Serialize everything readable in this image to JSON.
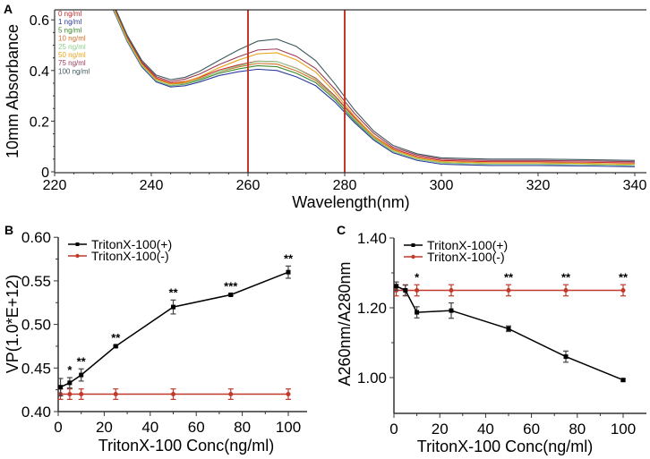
{
  "colors": {
    "plus": "#000000",
    "minus": "#c0392b",
    "marker_line": "#c0392b",
    "axis": "#333333"
  },
  "chart_data": [
    {
      "panel": "A",
      "type": "line",
      "xlabel": "Wavelength(nm)",
      "ylabel": "10mm Absorbance",
      "xlim": [
        220,
        342
      ],
      "ylim": [
        0,
        0.6
      ],
      "xticks": [
        220,
        240,
        260,
        280,
        300,
        320,
        340
      ],
      "yticks": [
        0,
        0.2,
        0.4,
        0.6
      ],
      "ytick_labels": [
        "0",
        "0.2",
        "0.4",
        "0.6"
      ],
      "reference_lines_x": [
        260,
        280
      ],
      "legend_placement": "top-left",
      "x": [
        232,
        235,
        238,
        241,
        244,
        247,
        250,
        254,
        258,
        262,
        266,
        270,
        274,
        278,
        282,
        286,
        290,
        295,
        300,
        310,
        320,
        330,
        340
      ],
      "series": [
        {
          "name": "0 ng/ml",
          "color": "#c8282d",
          "values": [
            0.66,
            0.53,
            0.43,
            0.37,
            0.351,
            0.357,
            0.373,
            0.402,
            0.422,
            0.437,
            0.435,
            0.409,
            0.37,
            0.299,
            0.215,
            0.142,
            0.091,
            0.06,
            0.045,
            0.04,
            0.04,
            0.038,
            0.035
          ]
        },
        {
          "name": "1 ng/ml",
          "color": "#2b3a9c",
          "values": [
            0.645,
            0.515,
            0.415,
            0.355,
            0.335,
            0.34,
            0.355,
            0.38,
            0.395,
            0.405,
            0.4,
            0.375,
            0.34,
            0.275,
            0.195,
            0.125,
            0.075,
            0.045,
            0.03,
            0.025,
            0.025,
            0.023,
            0.02
          ]
        },
        {
          "name": "5 ng/ml",
          "color": "#3c8a2c",
          "values": [
            0.65,
            0.52,
            0.42,
            0.36,
            0.34,
            0.346,
            0.362,
            0.389,
            0.406,
            0.419,
            0.415,
            0.389,
            0.352,
            0.285,
            0.202,
            0.131,
            0.08,
            0.05,
            0.035,
            0.03,
            0.03,
            0.028,
            0.025
          ]
        },
        {
          "name": "10 ng/ml",
          "color": "#d2702a",
          "values": [
            0.655,
            0.525,
            0.425,
            0.365,
            0.346,
            0.351,
            0.368,
            0.395,
            0.414,
            0.428,
            0.425,
            0.399,
            0.361,
            0.292,
            0.209,
            0.137,
            0.086,
            0.055,
            0.04,
            0.035,
            0.035,
            0.033,
            0.03
          ]
        },
        {
          "name": "25 ng/ml",
          "color": "#8fcf8f",
          "values": [
            0.65,
            0.52,
            0.42,
            0.36,
            0.341,
            0.348,
            0.365,
            0.396,
            0.418,
            0.436,
            0.435,
            0.408,
            0.367,
            0.294,
            0.207,
            0.133,
            0.081,
            0.05,
            0.035,
            0.03,
            0.03,
            0.028,
            0.025
          ]
        },
        {
          "name": "50 ng/ml",
          "color": "#e8a317",
          "values": [
            0.655,
            0.525,
            0.425,
            0.366,
            0.347,
            0.355,
            0.375,
            0.411,
            0.441,
            0.466,
            0.47,
            0.442,
            0.394,
            0.313,
            0.22,
            0.141,
            0.087,
            0.055,
            0.04,
            0.035,
            0.035,
            0.033,
            0.03
          ]
        },
        {
          "name": "75 ng/ml",
          "color": "#9a3a55",
          "values": [
            0.665,
            0.535,
            0.435,
            0.376,
            0.357,
            0.366,
            0.386,
            0.423,
            0.454,
            0.481,
            0.485,
            0.456,
            0.408,
            0.326,
            0.231,
            0.152,
            0.097,
            0.066,
            0.05,
            0.045,
            0.045,
            0.043,
            0.04
          ]
        },
        {
          "name": "100 ng/ml",
          "color": "#3f5a5e",
          "values": [
            0.67,
            0.54,
            0.441,
            0.382,
            0.364,
            0.373,
            0.397,
            0.44,
            0.481,
            0.516,
            0.524,
            0.495,
            0.439,
            0.347,
            0.245,
            0.161,
            0.104,
            0.071,
            0.055,
            0.05,
            0.05,
            0.048,
            0.045
          ]
        }
      ]
    },
    {
      "panel": "B",
      "type": "line",
      "xlabel": "TritonX-100 Conc(ng/ml)",
      "ylabel": "VP(1.0*E+12)",
      "xlim": [
        0,
        108
      ],
      "ylim": [
        0.4,
        0.6
      ],
      "xticks": [
        0,
        20,
        40,
        60,
        80,
        100
      ],
      "yticks": [
        0.4,
        0.45,
        0.5,
        0.55,
        0.6
      ],
      "ytick_labels": [
        "0.40",
        "0.45",
        "0.50",
        "0.55",
        "0.60"
      ],
      "legend_placement": "top-left",
      "x": [
        1,
        5,
        10,
        25,
        50,
        75,
        100
      ],
      "series": [
        {
          "name": "TritonX-100(+)",
          "color": "#000000",
          "values": [
            0.428,
            0.433,
            0.442,
            0.475,
            0.52,
            0.534,
            0.56
          ],
          "errors": [
            0.01,
            0.006,
            0.007,
            0.001,
            0.008,
            0.001,
            0.007
          ],
          "significance": [
            "",
            "*",
            "**",
            "**",
            "**",
            "***",
            "**"
          ]
        },
        {
          "name": "TritonX-100(-)",
          "color": "#c0392b",
          "values": [
            0.42,
            0.42,
            0.42,
            0.42,
            0.42,
            0.42,
            0.42
          ],
          "errors": [
            0.006,
            0.006,
            0.006,
            0.006,
            0.006,
            0.006,
            0.006
          ]
        }
      ]
    },
    {
      "panel": "C",
      "type": "line",
      "xlabel": "TritonX-100 Conc(ng/ml)",
      "ylabel": "A260nm/A280nm",
      "xlim": [
        0,
        110
      ],
      "ylim": [
        0.9,
        1.4
      ],
      "xticks": [
        0,
        20,
        40,
        60,
        80,
        100
      ],
      "yticks": [
        1.0,
        1.2,
        1.4
      ],
      "ytick_labels": [
        "1.00",
        "1.20",
        "1.40"
      ],
      "legend_placement": "top-left",
      "x": [
        1,
        5,
        10,
        25,
        50,
        75,
        100
      ],
      "series": [
        {
          "name": "TritonX-100(+)",
          "color": "#000000",
          "values": [
            1.262,
            1.25,
            1.187,
            1.192,
            1.14,
            1.06,
            0.993
          ],
          "errors": [
            0.012,
            0.015,
            0.016,
            0.022,
            0.008,
            0.016,
            0.003
          ]
        },
        {
          "name": "TritonX-100(-)",
          "color": "#c0392b",
          "values": [
            1.25,
            1.25,
            1.25,
            1.25,
            1.25,
            1.25,
            1.25
          ],
          "errors": [
            0.016,
            0.016,
            0.016,
            0.016,
            0.016,
            0.016,
            0.016
          ],
          "significance": [
            "",
            "",
            "*",
            "",
            "**",
            "**",
            "**"
          ]
        }
      ]
    }
  ]
}
